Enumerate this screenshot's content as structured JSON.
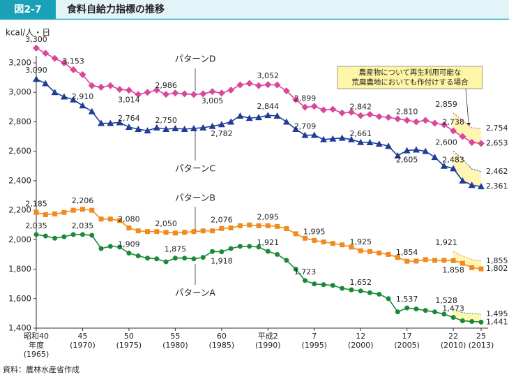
{
  "header": {
    "figure": "図2-7",
    "title": "食料自給力指標の推移"
  },
  "chart_data": {
    "type": "line",
    "ylabel": "kcal/人・日",
    "source": "資料：農林水産省作成",
    "annotation": [
      "農産物について再生利用可能な",
      "荒廃農地においても作付けする場合"
    ],
    "x": [
      1965,
      1966,
      1967,
      1968,
      1969,
      1970,
      1971,
      1972,
      1973,
      1974,
      1975,
      1976,
      1977,
      1978,
      1979,
      1980,
      1981,
      1982,
      1983,
      1984,
      1985,
      1986,
      1987,
      1988,
      1989,
      1990,
      1991,
      1992,
      1993,
      1994,
      1995,
      1996,
      1997,
      1998,
      1999,
      2000,
      2001,
      2002,
      2003,
      2004,
      2005,
      2006,
      2007,
      2008,
      2009,
      2010,
      2011,
      2012,
      2013
    ],
    "xlim": [
      1965,
      2013
    ],
    "xticks": [
      {
        "value": 1965,
        "label": [
          "昭和40",
          "年度",
          "(1965)"
        ]
      },
      {
        "value": 1970,
        "label": [
          "45",
          "(1970)"
        ]
      },
      {
        "value": 1975,
        "label": [
          "50",
          "(1975)"
        ]
      },
      {
        "value": 1980,
        "label": [
          "55",
          "(1980)"
        ]
      },
      {
        "value": 1985,
        "label": [
          "60",
          "(1985)"
        ]
      },
      {
        "value": 1990,
        "label": [
          "平成2",
          "(1990)"
        ]
      },
      {
        "value": 1995,
        "label": [
          "7",
          "(1995)"
        ]
      },
      {
        "value": 2000,
        "label": [
          "12",
          "(2000)"
        ]
      },
      {
        "value": 2005,
        "label": [
          "17",
          "(2005)"
        ]
      },
      {
        "value": 2010,
        "label": [
          "22",
          "(2010)"
        ]
      },
      {
        "value": 2013,
        "label": [
          "25",
          "(2013)"
        ]
      }
    ],
    "ylim": [
      1400,
      3200
    ],
    "yticks": [
      {
        "value": 1400,
        "label": "1,400"
      },
      {
        "value": 1600,
        "label": "1,600"
      },
      {
        "value": 1800,
        "label": "1,800"
      },
      {
        "value": 2000,
        "label": "2,000"
      },
      {
        "value": 2200,
        "label": "2,200"
      },
      {
        "value": 2400,
        "label": "2,400"
      },
      {
        "value": 2600,
        "label": "2,600"
      },
      {
        "value": 2800,
        "label": "2,800"
      },
      {
        "value": 3000,
        "label": "3,000"
      },
      {
        "value": 3200,
        "label": "3,200"
      }
    ],
    "extension_fill": "#fff5a6",
    "series": [
      {
        "name": "パターンD",
        "color": "#d9479a",
        "marker": "diamond",
        "values": [
          3300,
          3265,
          3230,
          3200,
          3153,
          3120,
          3045,
          3035,
          3045,
          3020,
          3014,
          2985,
          3000,
          3015,
          2986,
          2995,
          2990,
          2985,
          2990,
          3005,
          2995,
          3015,
          3050,
          3060,
          3045,
          3052,
          3050,
          3010,
          2950,
          2899,
          2905,
          2880,
          2885,
          2860,
          2865,
          2842,
          2850,
          2835,
          2830,
          2820,
          2810,
          2800,
          2810,
          2790,
          2780,
          2738,
          2700,
          2660,
          2653
        ],
        "value_labels": [
          "3,300",
          null,
          null,
          null,
          "3,153",
          null,
          null,
          null,
          null,
          null,
          "3,014",
          null,
          null,
          null,
          "2,986",
          null,
          null,
          null,
          null,
          "3,005",
          null,
          null,
          null,
          null,
          null,
          "3,052",
          null,
          null,
          null,
          "2,899",
          null,
          null,
          null,
          null,
          null,
          "2,842",
          null,
          null,
          null,
          null,
          "2,810",
          null,
          null,
          null,
          null,
          "2,738",
          null,
          null,
          "2,653"
        ],
        "extension_values": [
          null,
          null,
          null,
          null,
          null,
          null,
          null,
          null,
          null,
          null,
          null,
          null,
          null,
          null,
          null,
          null,
          null,
          null,
          null,
          null,
          null,
          null,
          null,
          null,
          null,
          null,
          null,
          null,
          null,
          null,
          null,
          null,
          null,
          null,
          null,
          null,
          null,
          null,
          null,
          null,
          null,
          null,
          null,
          null,
          null,
          2859,
          2810,
          2760,
          2754
        ],
        "extension_labels": [
          null,
          null,
          null,
          null,
          null,
          null,
          null,
          null,
          null,
          null,
          null,
          null,
          null,
          null,
          null,
          null,
          null,
          null,
          null,
          null,
          null,
          null,
          null,
          null,
          null,
          null,
          null,
          null,
          null,
          null,
          null,
          null,
          null,
          null,
          null,
          null,
          null,
          null,
          null,
          null,
          null,
          null,
          null,
          null,
          null,
          "2,859",
          null,
          null,
          "2,754"
        ]
      },
      {
        "name": "パターンC",
        "color": "#1f3c96",
        "marker": "triangle",
        "values": [
          3090,
          3060,
          3000,
          2970,
          2950,
          2910,
          2870,
          2790,
          2790,
          2795,
          2764,
          2750,
          2740,
          2760,
          2750,
          2755,
          2750,
          2755,
          2760,
          2770,
          2782,
          2800,
          2840,
          2825,
          2830,
          2844,
          2840,
          2800,
          2750,
          2709,
          2710,
          2680,
          2685,
          2690,
          2680,
          2661,
          2660,
          2650,
          2635,
          2570,
          2605,
          2610,
          2600,
          2560,
          2500,
          2483,
          2400,
          2370,
          2361
        ],
        "value_labels": [
          "3,090",
          null,
          null,
          null,
          null,
          "2,910",
          null,
          null,
          null,
          null,
          "2,764",
          null,
          null,
          null,
          "2,750",
          null,
          null,
          null,
          null,
          null,
          "2,782",
          null,
          null,
          null,
          null,
          "2,844",
          null,
          null,
          null,
          "2,709",
          null,
          null,
          null,
          null,
          null,
          "2,661",
          null,
          null,
          null,
          null,
          "2,605",
          null,
          null,
          null,
          null,
          "2,483",
          null,
          null,
          "2,361"
        ],
        "extension_values": [
          null,
          null,
          null,
          null,
          null,
          null,
          null,
          null,
          null,
          null,
          null,
          null,
          null,
          null,
          null,
          null,
          null,
          null,
          null,
          null,
          null,
          null,
          null,
          null,
          null,
          null,
          null,
          null,
          null,
          null,
          null,
          null,
          null,
          null,
          null,
          null,
          null,
          null,
          null,
          null,
          null,
          null,
          null,
          null,
          null,
          2600,
          2550,
          2480,
          2462
        ],
        "extension_labels": [
          null,
          null,
          null,
          null,
          null,
          null,
          null,
          null,
          null,
          null,
          null,
          null,
          null,
          null,
          null,
          null,
          null,
          null,
          null,
          null,
          null,
          null,
          null,
          null,
          null,
          null,
          null,
          null,
          null,
          null,
          null,
          null,
          null,
          null,
          null,
          null,
          null,
          null,
          null,
          null,
          null,
          null,
          null,
          null,
          null,
          "2,600",
          null,
          null,
          "2,462"
        ]
      },
      {
        "name": "パターンB",
        "color": "#f08a1c",
        "marker": "square",
        "values": [
          2185,
          2170,
          2175,
          2185,
          2200,
          2206,
          2200,
          2140,
          2140,
          2130,
          2080,
          2060,
          2055,
          2055,
          2050,
          2045,
          2050,
          2055,
          2060,
          2060,
          2076,
          2080,
          2095,
          2100,
          2095,
          2095,
          2090,
          2075,
          2040,
          2010,
          1995,
          1985,
          1975,
          1965,
          1950,
          1925,
          1920,
          1910,
          1900,
          1880,
          1854,
          1855,
          1865,
          1860,
          1860,
          1858,
          1840,
          1810,
          1802
        ],
        "value_labels": [
          "2,185",
          null,
          null,
          null,
          null,
          "2,206",
          null,
          null,
          null,
          null,
          "2,080",
          null,
          null,
          null,
          "2,050",
          null,
          null,
          null,
          null,
          null,
          "2,076",
          null,
          null,
          null,
          null,
          "2,095",
          null,
          null,
          null,
          null,
          "1,995",
          null,
          null,
          null,
          null,
          "1,925",
          null,
          null,
          null,
          null,
          "1,854",
          null,
          null,
          null,
          null,
          "1,858",
          null,
          null,
          "1,802"
        ],
        "extension_values": [
          null,
          null,
          null,
          null,
          null,
          null,
          null,
          null,
          null,
          null,
          null,
          null,
          null,
          null,
          null,
          null,
          null,
          null,
          null,
          null,
          null,
          null,
          null,
          null,
          null,
          null,
          null,
          null,
          null,
          null,
          null,
          null,
          null,
          null,
          null,
          null,
          null,
          null,
          null,
          null,
          null,
          null,
          null,
          null,
          null,
          1921,
          1890,
          1865,
          1855
        ],
        "extension_labels": [
          null,
          null,
          null,
          null,
          null,
          null,
          null,
          null,
          null,
          null,
          null,
          null,
          null,
          null,
          null,
          null,
          null,
          null,
          null,
          null,
          null,
          null,
          null,
          null,
          null,
          null,
          null,
          null,
          null,
          null,
          null,
          null,
          null,
          null,
          null,
          null,
          null,
          null,
          null,
          null,
          null,
          null,
          null,
          null,
          null,
          "1,921",
          null,
          null,
          "1,855"
        ]
      },
      {
        "name": "パターンA",
        "color": "#1a8a3a",
        "marker": "circle",
        "values": [
          2035,
          2025,
          2010,
          2020,
          2035,
          2035,
          2030,
          1940,
          1955,
          1950,
          1909,
          1890,
          1875,
          1870,
          1850,
          1875,
          1875,
          1870,
          1880,
          1920,
          1918,
          1940,
          1955,
          1955,
          1950,
          1921,
          1900,
          1860,
          1800,
          1723,
          1700,
          1695,
          1690,
          1670,
          1660,
          1652,
          1640,
          1630,
          1600,
          1510,
          1537,
          1530,
          1520,
          1510,
          1495,
          1473,
          1450,
          1445,
          1441
        ],
        "value_labels": [
          "2,035",
          null,
          null,
          null,
          null,
          "2,035",
          null,
          null,
          null,
          null,
          "1,909",
          null,
          null,
          null,
          null,
          "1,875",
          null,
          null,
          null,
          null,
          "1,918",
          null,
          null,
          null,
          null,
          "1,921",
          null,
          null,
          null,
          "1,723",
          null,
          null,
          null,
          null,
          null,
          "1,652",
          null,
          null,
          null,
          null,
          "1,537",
          null,
          null,
          null,
          null,
          "1,473",
          null,
          null,
          "1,441"
        ],
        "extension_values": [
          null,
          null,
          null,
          null,
          null,
          null,
          null,
          null,
          null,
          null,
          null,
          null,
          null,
          null,
          null,
          null,
          null,
          null,
          null,
          null,
          null,
          null,
          null,
          null,
          null,
          null,
          null,
          null,
          null,
          null,
          null,
          null,
          null,
          null,
          null,
          null,
          null,
          null,
          null,
          null,
          null,
          null,
          null,
          null,
          null,
          1528,
          1505,
          1498,
          1495
        ],
        "extension_labels": [
          null,
          null,
          null,
          null,
          null,
          null,
          null,
          null,
          null,
          null,
          null,
          null,
          null,
          null,
          null,
          null,
          null,
          null,
          null,
          null,
          null,
          null,
          null,
          null,
          null,
          null,
          null,
          null,
          null,
          null,
          null,
          null,
          null,
          null,
          null,
          null,
          null,
          null,
          null,
          null,
          null,
          null,
          null,
          null,
          null,
          "1,528",
          null,
          null,
          "1,495"
        ]
      }
    ]
  }
}
